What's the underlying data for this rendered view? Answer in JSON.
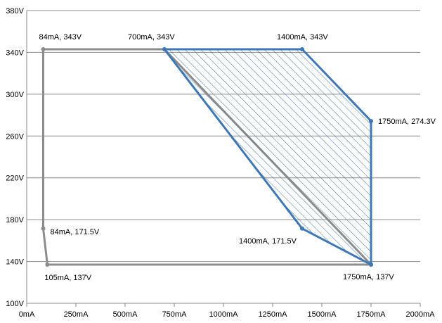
{
  "chart_data": {
    "type": "scatter",
    "title": "",
    "xlabel": "",
    "ylabel": "",
    "xlim": [
      0,
      2000
    ],
    "ylim": [
      100,
      380
    ],
    "x_ticks": [
      0,
      250,
      500,
      750,
      1000,
      1250,
      1500,
      1750,
      2000
    ],
    "x_tick_labels": [
      "0mA",
      "250mA",
      "500mA",
      "750mA",
      "1000mA",
      "1250mA",
      "1500mA",
      "1750mA",
      "2000mA"
    ],
    "y_ticks": [
      100,
      140,
      180,
      220,
      260,
      300,
      340,
      380
    ],
    "y_tick_labels": [
      "100V",
      "140V",
      "180V",
      "220V",
      "260V",
      "300V",
      "340V",
      "380V"
    ],
    "grid": true,
    "series": [
      {
        "color": "#8c8c8c",
        "closed": true,
        "hatched": false,
        "points": [
          {
            "x": 84,
            "y": 343
          },
          {
            "x": 700,
            "y": 343
          },
          {
            "x": 1750,
            "y": 137
          },
          {
            "x": 105,
            "y": 137
          },
          {
            "x": 84,
            "y": 171.5
          }
        ]
      },
      {
        "color": "#3f78b5",
        "closed": true,
        "hatched": true,
        "points": [
          {
            "x": 700,
            "y": 343
          },
          {
            "x": 1400,
            "y": 343
          },
          {
            "x": 1750,
            "y": 274.3
          },
          {
            "x": 1750,
            "y": 137
          },
          {
            "x": 1400,
            "y": 171.5
          }
        ]
      }
    ],
    "annotations": [
      {
        "text": "84mA, 343V",
        "x": 84,
        "y": 343
      },
      {
        "text": "700mA, 343V",
        "x": 700,
        "y": 343
      },
      {
        "text": "1400mA, 343V",
        "x": 1400,
        "y": 343
      },
      {
        "text": "1750mA, 274.3V",
        "x": 1750,
        "y": 274.3
      },
      {
        "text": "84mA, 171.5V",
        "x": 84,
        "y": 171.5
      },
      {
        "text": "1400mA, 171.5V",
        "x": 1400,
        "y": 171.5
      },
      {
        "text": "105mA, 137V",
        "x": 105,
        "y": 137
      },
      {
        "text": "1750mA, 137V",
        "x": 1750,
        "y": 137
      }
    ]
  }
}
